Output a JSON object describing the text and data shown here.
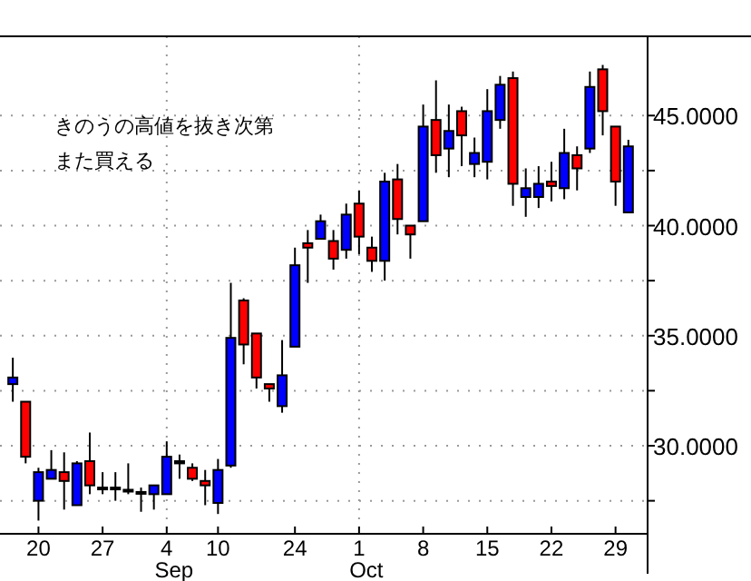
{
  "chart_data": {
    "type": "candlestick",
    "categories": [
      null,
      null,
      "20",
      null,
      null,
      null,
      null,
      "27",
      null,
      null,
      null,
      null,
      "4\nSep",
      null,
      null,
      null,
      "10",
      null,
      null,
      null,
      null,
      null,
      "24",
      null,
      null,
      null,
      null,
      "1\nOct",
      null,
      null,
      null,
      null,
      "8",
      null,
      null,
      null,
      null,
      "15",
      null,
      null,
      null,
      null,
      "22",
      null,
      null,
      null,
      null,
      "29",
      null
    ],
    "ohlc": [
      [
        32.8,
        34.0,
        32.0,
        33.1
      ],
      [
        32.0,
        32.0,
        29.2,
        29.5
      ],
      [
        27.5,
        29.0,
        26.6,
        28.8
      ],
      [
        28.5,
        29.8,
        28.5,
        28.9
      ],
      [
        28.8,
        29.7,
        27.1,
        28.4
      ],
      [
        27.3,
        29.3,
        27.3,
        29.2
      ],
      [
        29.3,
        30.6,
        27.8,
        28.2
      ],
      [
        28.1,
        28.8,
        27.8,
        28.1
      ],
      [
        28.1,
        28.8,
        27.5,
        28.1
      ],
      [
        28.0,
        29.2,
        27.8,
        28.0
      ],
      [
        27.9,
        28.1,
        27.0,
        27.9
      ],
      [
        27.8,
        28.2,
        27.1,
        28.2
      ],
      [
        27.8,
        30.2,
        27.8,
        29.5
      ],
      [
        29.3,
        29.6,
        28.5,
        29.2
      ],
      [
        29.0,
        29.2,
        28.4,
        28.5
      ],
      [
        28.4,
        28.9,
        27.3,
        28.2
      ],
      [
        27.4,
        29.4,
        26.9,
        28.9
      ],
      [
        29.1,
        37.4,
        29.0,
        34.9
      ],
      [
        36.6,
        36.7,
        33.7,
        34.6
      ],
      [
        35.1,
        35.1,
        32.6,
        33.1
      ],
      [
        32.8,
        32.8,
        32.0,
        32.6
      ],
      [
        31.8,
        34.8,
        31.5,
        33.2
      ],
      [
        34.5,
        39.0,
        34.5,
        38.2
      ],
      [
        39.2,
        39.8,
        37.4,
        39.0
      ],
      [
        39.4,
        40.5,
        39.4,
        40.2
      ],
      [
        39.3,
        39.8,
        38.0,
        38.5
      ],
      [
        38.9,
        41.0,
        38.5,
        40.5
      ],
      [
        41.0,
        41.6,
        38.7,
        39.5
      ],
      [
        39.0,
        39.5,
        37.9,
        38.4
      ],
      [
        38.4,
        42.4,
        37.5,
        42.0
      ],
      [
        42.1,
        42.8,
        39.6,
        40.3
      ],
      [
        40.0,
        40.0,
        38.5,
        39.6
      ],
      [
        40.2,
        45.5,
        40.2,
        44.5
      ],
      [
        44.8,
        46.6,
        42.4,
        43.2
      ],
      [
        43.5,
        45.5,
        42.2,
        44.3
      ],
      [
        45.2,
        45.4,
        42.7,
        44.1
      ],
      [
        42.8,
        44.0,
        42.2,
        43.3
      ],
      [
        42.9,
        46.2,
        42.1,
        45.2
      ],
      [
        44.8,
        46.8,
        44.4,
        46.4
      ],
      [
        46.7,
        47.0,
        40.9,
        41.9
      ],
      [
        41.3,
        42.6,
        40.4,
        41.7
      ],
      [
        41.3,
        42.7,
        40.8,
        41.9
      ],
      [
        42.0,
        42.9,
        41.1,
        41.8
      ],
      [
        41.7,
        44.4,
        41.2,
        43.3
      ],
      [
        43.2,
        43.6,
        41.6,
        42.6
      ],
      [
        43.5,
        47.0,
        43.3,
        46.3
      ],
      [
        47.1,
        47.3,
        44.1,
        45.2
      ],
      [
        44.5,
        44.5,
        40.9,
        42.0
      ],
      [
        40.6,
        43.9,
        40.6,
        43.6
      ]
    ],
    "colors": [
      "#0000ff",
      "#ff0000",
      "#0000ff",
      "#0000ff",
      "#ff0000",
      "#0000ff",
      "#ff0000",
      "#000000",
      "#000000",
      "#000000",
      "#000000",
      "#0000ff",
      "#0000ff",
      "#000000",
      "#ff0000",
      "#ff0000",
      "#0000ff",
      "#0000ff",
      "#ff0000",
      "#ff0000",
      "#ff0000",
      "#0000ff",
      "#0000ff",
      "#ff0000",
      "#0000ff",
      "#ff0000",
      "#0000ff",
      "#ff0000",
      "#ff0000",
      "#0000ff",
      "#ff0000",
      "#ff0000",
      "#0000ff",
      "#ff0000",
      "#0000ff",
      "#ff0000",
      "#0000ff",
      "#0000ff",
      "#0000ff",
      "#ff0000",
      "#0000ff",
      "#0000ff",
      "#ff0000",
      "#0000ff",
      "#ff0000",
      "#0000ff",
      "#ff0000",
      "#ff0000",
      "#0000ff"
    ],
    "ylim": [
      26,
      48.6
    ],
    "yticks": [
      {
        "value": 27.5,
        "label": null
      },
      {
        "value": 30,
        "label": "30.0000"
      },
      {
        "value": 32.5,
        "label": null
      },
      {
        "value": 35,
        "label": "35.0000"
      },
      {
        "value": 37.5,
        "label": null
      },
      {
        "value": 40,
        "label": "40.0000"
      },
      {
        "value": 42.5,
        "label": null
      },
      {
        "value": 45,
        "label": "45.0000"
      }
    ],
    "grid": "y",
    "ref_lines": [
      {
        "axis": "x",
        "value": "4\nSep",
        "line_style": "dotted"
      },
      {
        "axis": "x",
        "value": "1\nOct",
        "line_style": "dotted"
      }
    ],
    "annotations": [
      "きのうの高値を抜き次第",
      "また買える"
    ]
  }
}
